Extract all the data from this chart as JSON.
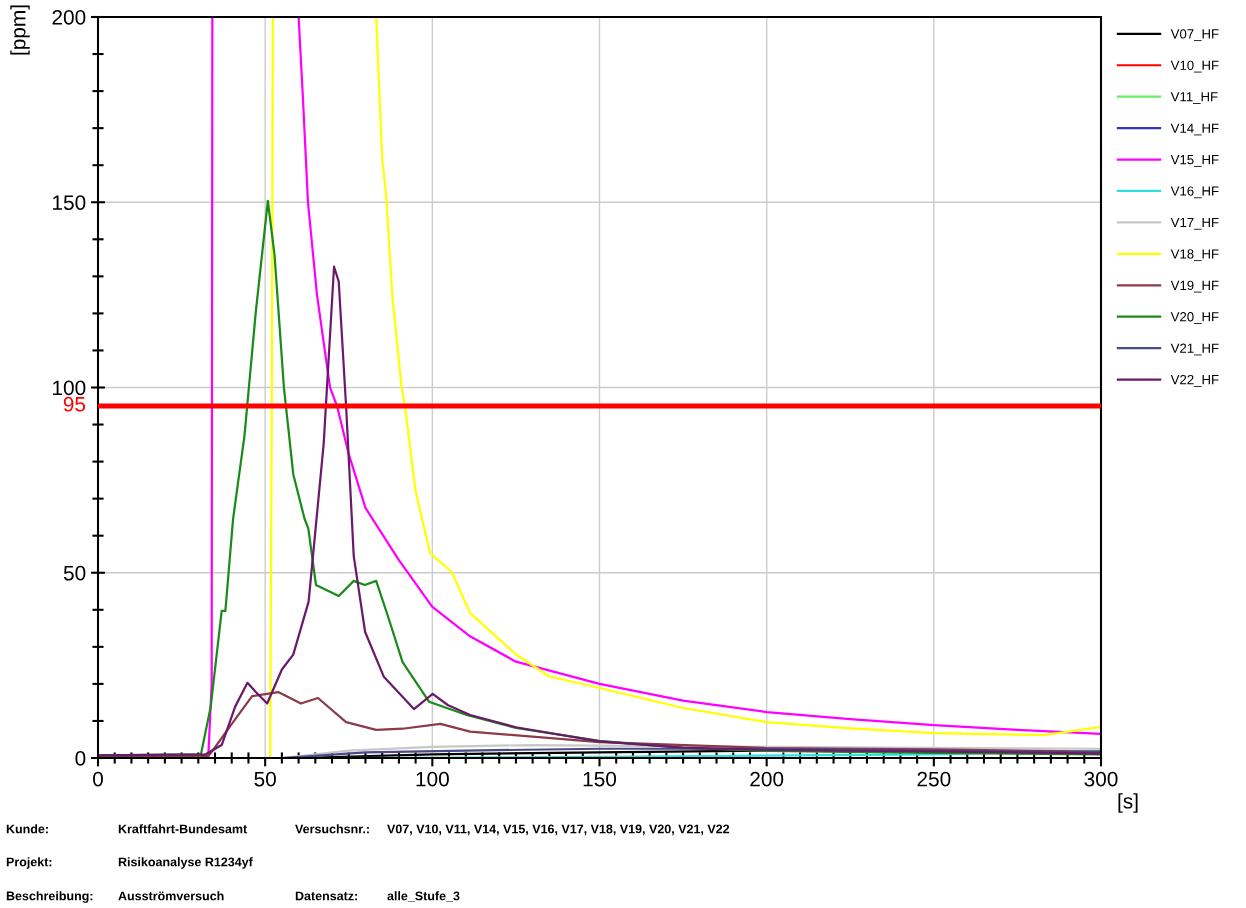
{
  "chart_data": {
    "type": "line",
    "xlabel": "[s]",
    "ylabel": "[ppm]",
    "xlim": [
      0,
      300
    ],
    "ylim": [
      0,
      200
    ],
    "xticks": [
      0,
      {
        "value": 5,
        "label": null
      },
      {
        "value": 10,
        "label": null
      },
      {
        "value": 15,
        "label": null
      },
      {
        "value": 20,
        "label": null
      },
      {
        "value": 25,
        "label": null
      },
      {
        "value": 30,
        "label": null
      },
      {
        "value": 35,
        "label": null
      },
      {
        "value": 40,
        "label": null
      },
      {
        "value": 45,
        "label": null
      },
      50,
      {
        "value": 55,
        "label": null
      },
      {
        "value": 60,
        "label": null
      },
      {
        "value": 65,
        "label": null
      },
      {
        "value": 70,
        "label": null
      },
      {
        "value": 75,
        "label": null
      },
      {
        "value": 80,
        "label": null
      },
      {
        "value": 85,
        "label": null
      },
      {
        "value": 90,
        "label": null
      },
      {
        "value": 95,
        "label": null
      },
      100,
      {
        "value": 105,
        "label": null
      },
      {
        "value": 110,
        "label": null
      },
      {
        "value": 115,
        "label": null
      },
      {
        "value": 120,
        "label": null
      },
      {
        "value": 125,
        "label": null
      },
      {
        "value": 130,
        "label": null
      },
      {
        "value": 135,
        "label": null
      },
      {
        "value": 140,
        "label": null
      },
      {
        "value": 145,
        "label": null
      },
      150,
      {
        "value": 155,
        "label": null
      },
      {
        "value": 160,
        "label": null
      },
      {
        "value": 165,
        "label": null
      },
      {
        "value": 170,
        "label": null
      },
      {
        "value": 175,
        "label": null
      },
      {
        "value": 180,
        "label": null
      },
      {
        "value": 185,
        "label": null
      },
      {
        "value": 190,
        "label": null
      },
      {
        "value": 195,
        "label": null
      },
      200,
      {
        "value": 205,
        "label": null
      },
      {
        "value": 210,
        "label": null
      },
      {
        "value": 215,
        "label": null
      },
      {
        "value": 220,
        "label": null
      },
      {
        "value": 225,
        "label": null
      },
      {
        "value": 230,
        "label": null
      },
      {
        "value": 235,
        "label": null
      },
      {
        "value": 240,
        "label": null
      },
      {
        "value": 245,
        "label": null
      },
      250,
      {
        "value": 255,
        "label": null
      },
      {
        "value": 260,
        "label": null
      },
      {
        "value": 265,
        "label": null
      },
      {
        "value": 270,
        "label": null
      },
      {
        "value": 275,
        "label": null
      },
      {
        "value": 280,
        "label": null
      },
      {
        "value": 285,
        "label": null
      },
      {
        "value": 290,
        "label": null
      },
      {
        "value": 295,
        "label": null
      },
      300
    ],
    "yticks": [
      0,
      {
        "value": 10,
        "label": null
      },
      {
        "value": 20,
        "label": null
      },
      {
        "value": 30,
        "label": null
      },
      {
        "value": 40,
        "label": null
      },
      50,
      {
        "value": 60,
        "label": null
      },
      {
        "value": 70,
        "label": null
      },
      {
        "value": 80,
        "label": null
      },
      {
        "value": 90,
        "label": null
      },
      100,
      {
        "value": 110,
        "label": null
      },
      {
        "value": 120,
        "label": null
      },
      {
        "value": 130,
        "label": null
      },
      {
        "value": 140,
        "label": null
      },
      150,
      {
        "value": 160,
        "label": null
      },
      {
        "value": 170,
        "label": null
      },
      {
        "value": 180,
        "label": null
      },
      {
        "value": 190,
        "label": null
      },
      200
    ],
    "grid": true,
    "legend": "top right",
    "marker": "none",
    "line_style": "solid",
    "ref_lines": [
      {
        "axis": "y",
        "value": 95,
        "label": "95",
        "color": "#ff0000"
      }
    ],
    "series": [
      {
        "name": "V07_HF",
        "color": "#000000",
        "x": [
          0,
          60,
          100,
          150,
          200,
          300
        ],
        "values": [
          0,
          0,
          1,
          1.5,
          2,
          1.5
        ]
      },
      {
        "name": "V10_HF",
        "color": "#ff0000"
      },
      {
        "name": "V11_HF",
        "color": "#66ee66"
      },
      {
        "name": "V14_HF",
        "color": "#3333cc"
      },
      {
        "name": "V15_HF",
        "color": "#ff00ff",
        "x": [
          33,
          34,
          34.2,
          47,
          60,
          61.3,
          62.8,
          65.5,
          69.4,
          71.5,
          75,
          80,
          90,
          100,
          111,
          125,
          150,
          175,
          200,
          225,
          250,
          275,
          300
        ],
        "values": [
          0.7,
          20,
          200,
          null,
          200,
          178,
          150,
          125,
          100,
          95,
          82,
          67.5,
          53.4,
          40.8,
          33,
          26,
          20,
          15.5,
          12.4,
          10.5,
          8.9,
          7.6,
          6.5
        ]
      },
      {
        "name": "V16_HF",
        "color": "#33dddd",
        "x": [
          0,
          70,
          150,
          250,
          300
        ],
        "values": [
          0,
          0,
          0.3,
          1,
          2
        ]
      },
      {
        "name": "V17_HF",
        "color": "#c8c8c8",
        "x": [
          0,
          55,
          75,
          100,
          130,
          200,
          300
        ],
        "values": [
          0,
          0,
          2,
          3,
          3.5,
          3,
          2.5
        ]
      },
      {
        "name": "V18_HF",
        "color": "#ffff00",
        "x": [
          0,
          51.5,
          52,
          52.3,
          68,
          83.2,
          85,
          85.3,
          86.3,
          88,
          90.8,
          91.8,
          95,
          99.3,
          105.8,
          111.3,
          125,
          135,
          150,
          175,
          200,
          225,
          250,
          283,
          300
        ],
        "values": [
          0,
          0,
          100,
          200,
          null,
          200,
          162,
          159.5,
          150.6,
          125,
          100.1,
          95,
          72,
          55.3,
          50.2,
          39.1,
          28,
          22,
          18.9,
          13.5,
          9.7,
          8,
          6.7,
          6.2,
          8.4
        ]
      },
      {
        "name": "V19_HF",
        "color": "#8b3a4a",
        "x": [
          0,
          33,
          34.7,
          40.4,
          46.1,
          53.9,
          60.7,
          65.8,
          74.2,
          83.2,
          91.1,
          102.4,
          111.3,
          150,
          200,
          250,
          300
        ],
        "values": [
          0.5,
          0.5,
          2.5,
          9.7,
          16.7,
          17.8,
          14.7,
          16.2,
          9.7,
          7.6,
          7.9,
          9.2,
          7.1,
          4.3,
          2.7,
          2.3,
          1.7
        ]
      },
      {
        "name": "V20_HF",
        "color": "#1a8a1a",
        "x": [
          0,
          30.8,
          33.7,
          37.0,
          38.1,
          40.4,
          43.8,
          47.2,
          50.8,
          52.8,
          55.6,
          58.4,
          61.8,
          62.9,
          65.2,
          72.0,
          76.5,
          79.8,
          83.2,
          86.6,
          91.1,
          99.0,
          110.3,
          125,
          150,
          175,
          200,
          250,
          300
        ],
        "values": [
          0.7,
          1.0,
          13.8,
          39.7,
          39.7,
          64.5,
          86.9,
          120.4,
          150.4,
          135.8,
          100.1,
          76.6,
          64.5,
          62,
          46.7,
          43.7,
          47.8,
          46.7,
          47.8,
          38.6,
          25.9,
          15.2,
          11.6,
          8.1,
          4.6,
          2.7,
          1.9,
          1.4,
          1
        ]
      },
      {
        "name": "V21_HF",
        "color": "#4a4a8a",
        "x": [
          0,
          55,
          80,
          110,
          150,
          200,
          250,
          300
        ],
        "values": [
          0,
          0,
          1.5,
          2,
          2.5,
          2.5,
          2,
          1.5
        ]
      },
      {
        "name": "V22_HF",
        "color": "#6a1a6a",
        "x": [
          0,
          32.2,
          37.0,
          41.0,
          44.7,
          47.2,
          50.6,
          55.0,
          58.4,
          63.0,
          67.5,
          70.6,
          72.0,
          74.2,
          76.5,
          79.9,
          85.5,
          94.5,
          100.1,
          104.6,
          111.3,
          125,
          150,
          175,
          200,
          250,
          300
        ],
        "values": [
          0.7,
          1.0,
          3.5,
          13.8,
          20.3,
          17.8,
          14.7,
          23.9,
          27.9,
          42.2,
          84.8,
          132.6,
          128.6,
          95,
          54.4,
          34,
          21.9,
          13.2,
          17.3,
          14.3,
          11.6,
          8.3,
          4.5,
          2.8,
          2.2,
          1.8,
          1.2
        ]
      }
    ],
    "annotations": [
      "Kunde:",
      "Kraftfahrt-Bundesamt",
      "Versuchsnr.:",
      "V07, V10, V11, V14, V15, V16, V17, V18, V19, V20, V21, V22",
      "Projekt:",
      "Risikoanalyse R1234yf",
      "Beschreibung:",
      "Ausströmversuch",
      "Datensatz:",
      "alle_Stufe_3"
    ]
  }
}
